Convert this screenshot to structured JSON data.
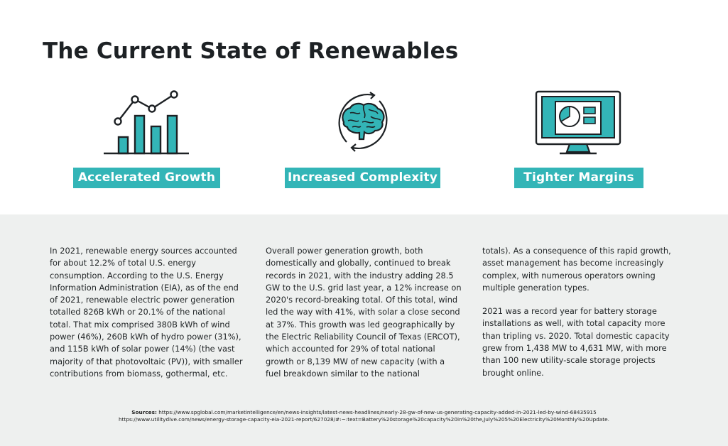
{
  "title": "The Current State of Renewables",
  "sections": [
    {
      "label": "Accelerated Growth",
      "icon": "growth-chart-icon"
    },
    {
      "label": "Increased Complexity",
      "icon": "brain-icon"
    },
    {
      "label": "Tighter Margins",
      "icon": "monitor-chart-icon"
    }
  ],
  "columns": {
    "col1": "In 2021, renewable energy sources accounted for about 12.2% of total U.S. energy consumption. According to the U.S. Energy Information Administration (EIA), as of the end of 2021, renewable electric power generation totalled 826B kWh or 20.1% of the national total. That mix comprised 380B kWh of wind power (46%), 260B kWh of hydro power (31%), and 115B kWh of solar power (14%) (the vast majority of that photovoltaic (PV)), with smaller contributions from biomass, gothermal, etc.",
    "col2": "Overall power generation growth, both domestically and globally, continued to break records in 2021, with the industry adding 28.5 GW to the U.S. grid last year, a 12% increase on 2020's record-breaking total. Of this total, wind led the way with 41%, with solar a close second at 37%. This growth was led geographically by the Electric Reliability Council of Texas (ERCOT), which accounted for 29% of total national growth or 8,139 MW of new capacity (with a fuel breakdown similar to the national",
    "col3_p1": "totals). As a consequence of this rapid growth, asset management has become increasingly complex, with numerous operators owning multiple generation types.",
    "col3_p2": "2021 was a record year for battery storage installations as well, with total capacity more than tripling vs. 2020. Total domestic capacity grew from 1,438 MW to 4,631 MW, with more than 100 new utility-scale storage projects brought online."
  },
  "sources": {
    "label": "Sources:",
    "line1": "https://www.spglobal.com/marketintelligence/en/news-insights/latest-news-headlines/nearly-28-gw-of-new-us-generating-capacity-added-in-2021-led-by-wind-68435915",
    "line2": "https://www.utilitydive.com/news/energy-storage-capacity-eia-2021-report/627028/#:~:text=Battery%20storage%20capacity%20in%20the,July%205%20Electricity%20Monthly%20Update."
  },
  "colors": {
    "accent": "#33b5b7",
    "dark": "#1d2124",
    "panel": "#eef0ef"
  }
}
